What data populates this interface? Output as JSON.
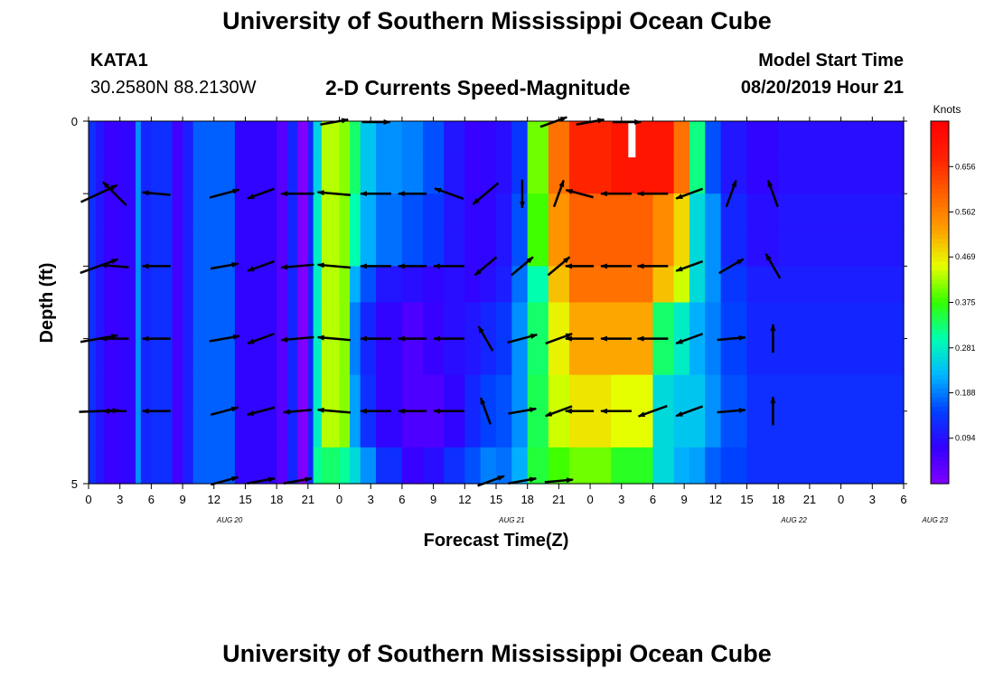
{
  "header": {
    "title": "University of Southern Mississippi Ocean Cube",
    "station_id": "KATA1",
    "station_coords": "30.2580N 88.2130W",
    "model_start_label": "Model Start Time",
    "model_start_time": "08/20/2019 Hour 21",
    "bottom_title": "University of Southern Mississippi Ocean Cube"
  },
  "chart_data": {
    "type": "heatmap",
    "title": "2-D Currents Speed-Magnitude",
    "xlabel": "Forecast Time(Z)",
    "ylabel": "Depth (ft)",
    "colorbar_label": "Knots",
    "colorbar_ticks": [
      "0.094",
      "0.188",
      "0.281",
      "0.375",
      "0.469",
      "0.562",
      "0.656"
    ],
    "colorbar_range": [
      0,
      0.75
    ],
    "y_tick_labels": [
      "0",
      "5"
    ],
    "y_range": [
      0,
      5
    ],
    "x_tick_labels": [
      "0",
      "3",
      "6",
      "9",
      "12",
      "15",
      "18",
      "21",
      "0",
      "3",
      "6",
      "9",
      "12",
      "15",
      "18",
      "21",
      "0",
      "3",
      "6",
      "9",
      "12",
      "15",
      "18",
      "21",
      "0",
      "3",
      "6"
    ],
    "date_labels": [
      {
        "label": "AUG 20",
        "tick_index": 4.5
      },
      {
        "label": "AUG 21",
        "tick_index": 13.5
      },
      {
        "label": "AUG 22",
        "tick_index": 22.5
      },
      {
        "label": "AUG 23",
        "tick_index": 27.0
      }
    ],
    "depth_layers": [
      0,
      1,
      2,
      3,
      4
    ],
    "column_profiles": [
      {
        "tick": 0,
        "speeds": [
          0.13,
          0.13,
          0.13,
          0.13,
          0.13,
          0.13
        ]
      },
      {
        "tick": 0.7,
        "speeds": [
          0.1,
          0.1,
          0.1,
          0.1,
          0.1,
          0.1
        ]
      },
      {
        "tick": 1.5,
        "speeds": [
          0.07,
          0.07,
          0.07,
          0.07,
          0.07,
          0.07
        ]
      },
      {
        "tick": 3.0,
        "speeds": [
          0.08,
          0.08,
          0.08,
          0.08,
          0.08,
          0.08
        ]
      },
      {
        "tick": 4.5,
        "speeds": [
          0.2,
          0.2,
          0.2,
          0.2,
          0.2,
          0.2
        ]
      },
      {
        "tick": 5.0,
        "speeds": [
          0.12,
          0.12,
          0.12,
          0.12,
          0.12,
          0.12
        ]
      },
      {
        "tick": 6.0,
        "speeds": [
          0.13,
          0.13,
          0.13,
          0.13,
          0.13,
          0.13
        ]
      },
      {
        "tick": 8.0,
        "speeds": [
          0.06,
          0.06,
          0.06,
          0.06,
          0.06,
          0.06
        ]
      },
      {
        "tick": 9.0,
        "speeds": [
          0.11,
          0.11,
          0.11,
          0.11,
          0.11,
          0.11
        ]
      },
      {
        "tick": 10.0,
        "speeds": [
          0.17,
          0.17,
          0.17,
          0.17,
          0.17,
          0.17
        ]
      },
      {
        "tick": 12.5,
        "speeds": [
          0.17,
          0.17,
          0.17,
          0.17,
          0.17,
          0.17
        ]
      },
      {
        "tick": 14.0,
        "speeds": [
          0.08,
          0.08,
          0.08,
          0.08,
          0.08,
          0.08
        ]
      },
      {
        "tick": 18.0,
        "speeds": [
          0.04,
          0.04,
          0.04,
          0.04,
          0.04,
          0.04
        ]
      },
      {
        "tick": 19.0,
        "speeds": [
          0.12,
          0.12,
          0.12,
          0.12,
          0.12,
          0.12
        ]
      },
      {
        "tick": 20.0,
        "speeds": [
          0.0,
          0.0,
          0.0,
          0.0,
          0.0,
          0.0
        ]
      },
      {
        "tick": 21.0,
        "speeds": [
          0.12,
          0.12,
          0.12,
          0.12,
          0.12,
          0.12
        ]
      },
      {
        "tick": 21.5,
        "speeds": [
          0.25,
          0.28,
          0.28,
          0.28,
          0.28,
          0.31
        ]
      },
      {
        "tick": 22.3,
        "speeds": [
          0.43,
          0.43,
          0.43,
          0.43,
          0.43,
          0.33
        ]
      },
      {
        "tick": 24.0,
        "speeds": [
          0.41,
          0.41,
          0.41,
          0.41,
          0.41,
          0.31
        ]
      },
      {
        "tick": 25.0,
        "speeds": [
          0.33,
          0.3,
          0.22,
          0.19,
          0.21,
          0.26
        ]
      },
      {
        "tick": 26.0,
        "speeds": [
          0.24,
          0.22,
          0.16,
          0.12,
          0.13,
          0.2
        ]
      },
      {
        "tick": 27.5,
        "speeds": [
          0.2,
          0.18,
          0.1,
          0.08,
          0.08,
          0.13
        ]
      },
      {
        "tick": 30.0,
        "speeds": [
          0.19,
          0.16,
          0.09,
          0.05,
          0.05,
          0.07
        ]
      },
      {
        "tick": 32.0,
        "speeds": [
          0.16,
          0.14,
          0.08,
          0.07,
          0.05,
          0.09
        ]
      },
      {
        "tick": 34.0,
        "speeds": [
          0.1,
          0.1,
          0.09,
          0.09,
          0.08,
          0.13
        ]
      },
      {
        "tick": 36.0,
        "speeds": [
          0.07,
          0.08,
          0.08,
          0.1,
          0.12,
          0.16
        ]
      },
      {
        "tick": 37.5,
        "speeds": [
          0.08,
          0.08,
          0.09,
          0.12,
          0.15,
          0.19
        ]
      },
      {
        "tick": 39.0,
        "speeds": [
          0.09,
          0.1,
          0.11,
          0.14,
          0.16,
          0.18
        ]
      },
      {
        "tick": 40.5,
        "speeds": [
          0.14,
          0.16,
          0.18,
          0.2,
          0.2,
          0.22
        ]
      },
      {
        "tick": 42.0,
        "speeds": [
          0.4,
          0.38,
          0.3,
          0.33,
          0.34,
          0.35
        ]
      },
      {
        "tick": 44.0,
        "speeds": [
          0.58,
          0.54,
          0.5,
          0.46,
          0.44,
          0.38
        ]
      },
      {
        "tick": 46.0,
        "speeds": [
          0.67,
          0.6,
          0.58,
          0.52,
          0.47,
          0.4
        ]
      },
      {
        "tick": 50.0,
        "speeds": [
          0.7,
          0.6,
          0.58,
          0.52,
          0.45,
          0.36
        ]
      },
      {
        "tick": 54.0,
        "speeds": [
          0.7,
          0.55,
          0.5,
          0.33,
          0.26,
          0.26
        ]
      },
      {
        "tick": 56.0,
        "speeds": [
          0.58,
          0.48,
          0.44,
          0.28,
          0.24,
          0.22
        ]
      },
      {
        "tick": 57.5,
        "speeds": [
          0.32,
          0.26,
          0.26,
          0.22,
          0.24,
          0.21
        ]
      },
      {
        "tick": 59.0,
        "speeds": [
          0.16,
          0.2,
          0.2,
          0.19,
          0.2,
          0.17
        ]
      },
      {
        "tick": 60.5,
        "speeds": [
          0.1,
          0.12,
          0.14,
          0.15,
          0.16,
          0.15
        ]
      },
      {
        "tick": 63.0,
        "speeds": [
          0.08,
          0.09,
          0.11,
          0.12,
          0.13,
          0.13
        ]
      },
      {
        "tick": 66.0,
        "speeds": [
          0.09,
          0.1,
          0.11,
          0.12,
          0.13,
          0.13
        ]
      }
    ],
    "missing_cell": {
      "tick": 52.0,
      "depth_layer": 0
    },
    "current_vectors": [
      {
        "tick": 1,
        "speeds": [
          0.17,
          0.17,
          0.17,
          0.16,
          0.17
        ],
        "dirs": [
          60,
          65,
          70,
          80,
          88
        ]
      },
      {
        "tick": 2.5,
        "speeds": [
          0.14,
          0.14,
          0.12,
          0.12,
          0.1
        ],
        "dirs": [
          315,
          315,
          275,
          270,
          270
        ]
      },
      {
        "tick": 6.5,
        "speeds": [
          0.12,
          0.12,
          0.12,
          0.12,
          0.12
        ],
        "dirs": [
          275,
          275,
          270,
          270,
          270
        ]
      },
      {
        "tick": 13,
        "speeds": [
          0.13,
          0.13,
          0.12,
          0.13,
          0.12
        ],
        "dirs": [
          75,
          75,
          80,
          80,
          75
        ]
      },
      {
        "tick": 16.5,
        "speeds": [
          0.12,
          0.12,
          0.12,
          0.12,
          0.12
        ],
        "dirs": [
          250,
          250,
          250,
          250,
          255
        ]
      },
      {
        "tick": 20,
        "speeds": [
          0.14,
          0.14,
          0.14,
          0.14,
          0.12
        ],
        "dirs": [
          270,
          270,
          265,
          265,
          265
        ]
      },
      {
        "tick": 23.5,
        "speeds": [
          0.14,
          0.14,
          0.14,
          0.14,
          0.14
        ],
        "dirs": [
          275,
          275,
          275,
          275,
          275
        ]
      },
      {
        "tick": 27.5,
        "speeds": [
          0.13,
          0.13,
          0.13,
          0.13,
          0.13
        ],
        "dirs": [
          270,
          270,
          270,
          270,
          270
        ]
      },
      {
        "tick": 31,
        "speeds": [
          0.12,
          0.12,
          0.12,
          0.12,
          0.12
        ],
        "dirs": [
          270,
          270,
          270,
          270,
          270
        ]
      },
      {
        "tick": 34.5,
        "speeds": [
          0.13,
          0.13,
          0.13,
          0.13,
          0.13
        ],
        "dirs": [
          290,
          290,
          270,
          270,
          270
        ]
      },
      {
        "tick": 38,
        "speeds": [
          0.13,
          0.14,
          0.12,
          0.12,
          0.12
        ],
        "dirs": [
          230,
          230,
          230,
          330,
          340
        ]
      },
      {
        "tick": 41.5,
        "speeds": [
          0.13,
          0.12,
          0.12,
          0.13,
          0.12
        ],
        "dirs": [
          220,
          180,
          50,
          75,
          80
        ]
      },
      {
        "tick": 45,
        "speeds": [
          0.12,
          0.12,
          0.12,
          0.12,
          0.12
        ],
        "dirs": [
          0,
          20,
          50,
          70,
          250
        ]
      },
      {
        "tick": 47,
        "speeds": [
          0.12,
          0.12,
          0.12,
          0.12,
          0.12
        ],
        "dirs": [
          285,
          285,
          270,
          270,
          270
        ]
      },
      {
        "tick": 50.5,
        "speeds": [
          0.13,
          0.13,
          0.13,
          0.13,
          0.13
        ],
        "dirs": [
          270,
          270,
          270,
          270,
          270
        ]
      },
      {
        "tick": 54,
        "speeds": [
          0.13,
          0.13,
          0.13,
          0.13,
          0.13
        ],
        "dirs": [
          270,
          270,
          270,
          270,
          250
        ]
      },
      {
        "tick": 57.5,
        "speeds": [
          0.12,
          0.12,
          0.12,
          0.12,
          0.12
        ],
        "dirs": [
          250,
          250,
          250,
          250,
          250
        ]
      },
      {
        "tick": 61.5,
        "speeds": [
          0.12,
          0.12,
          0.12,
          0.12,
          0.12
        ],
        "dirs": [
          330,
          20,
          60,
          85,
          85
        ]
      },
      {
        "tick": 65.5,
        "speeds": [
          0.12,
          0.12,
          0.12,
          0.12,
          0.12
        ],
        "dirs": [
          310,
          340,
          330,
          0,
          0
        ]
      }
    ],
    "surface_vectors": [
      {
        "tick": 23.5,
        "speed": 0.12,
        "dir": 80
      },
      {
        "tick": 27.5,
        "speed": 0.12,
        "dir": 90
      },
      {
        "tick": 44.5,
        "speed": 0.12,
        "dir": 70
      },
      {
        "tick": 48,
        "speed": 0.12,
        "dir": 80
      },
      {
        "tick": 51.5,
        "speed": 0.12,
        "dir": 90
      }
    ],
    "bottom_vectors": [
      {
        "tick": 13,
        "speed": 0.12,
        "dir": 75
      },
      {
        "tick": 16.5,
        "speed": 0.12,
        "dir": 80
      },
      {
        "tick": 20,
        "speed": 0.12,
        "dir": 80
      },
      {
        "tick": 38.5,
        "speed": 0.12,
        "dir": 70
      },
      {
        "tick": 41.5,
        "speed": 0.12,
        "dir": 80
      },
      {
        "tick": 45,
        "speed": 0.12,
        "dir": 85
      }
    ],
    "colors": {
      "scale": [
        "#8000ff",
        "#3300ff",
        "#0040ff",
        "#00b8ff",
        "#00ffb0",
        "#33ff00",
        "#e6ff00",
        "#ffa000",
        "#ff6000",
        "#ff2000",
        "#ff0000"
      ]
    }
  }
}
